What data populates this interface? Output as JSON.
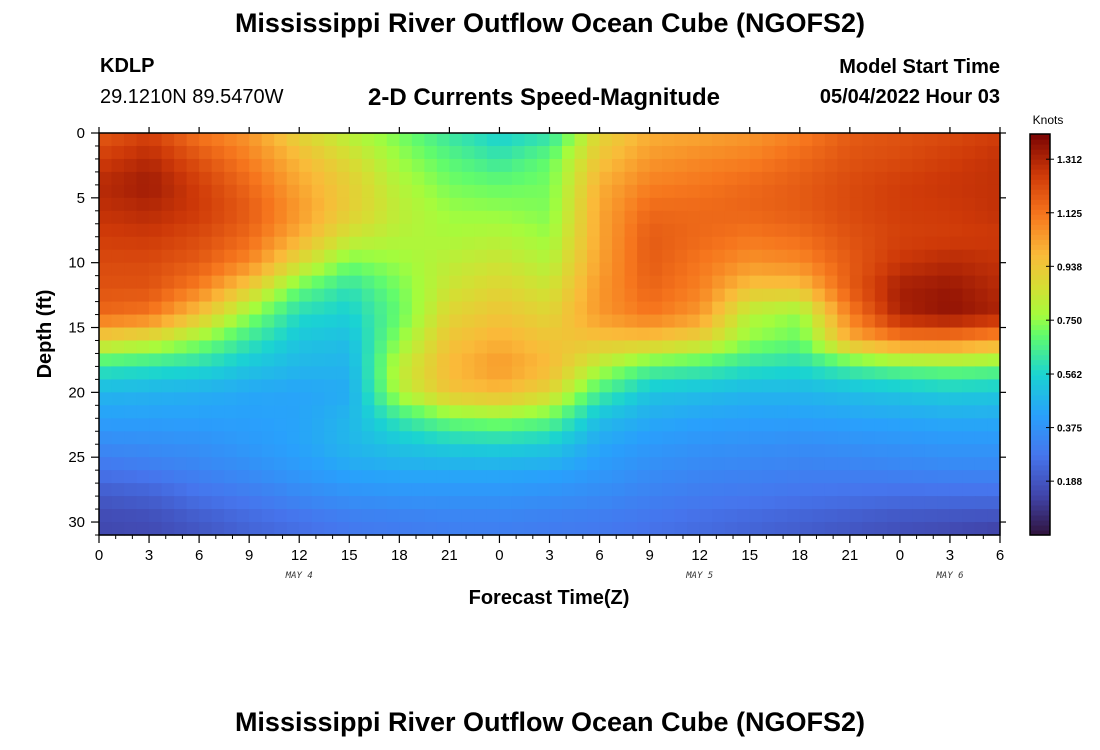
{
  "header": {
    "title": "Mississippi River Outflow Ocean Cube (NGOFS2)",
    "station": "KDLP",
    "coordinates": "29.1210N  89.5470W",
    "subtitle": "2-D Currents Speed-Magnitude",
    "start_label": "Model Start Time",
    "start_value": "05/04/2022 Hour 03"
  },
  "footer": {
    "title": "Mississippi River Outflow Ocean Cube (NGOFS2)"
  },
  "chart_data": {
    "type": "heatmap",
    "title": "2-D Currents Speed-Magnitude",
    "xlabel": "Forecast Time(Z)",
    "ylabel": "Depth (ft)",
    "x_range_hours": [
      0,
      54
    ],
    "y_range_ft": [
      0,
      31
    ],
    "x_tick_labels": [
      "0",
      "3",
      "6",
      "9",
      "12",
      "15",
      "18",
      "21",
      "0",
      "3",
      "6",
      "9",
      "12",
      "15",
      "18",
      "21",
      "0",
      "3",
      "6"
    ],
    "y_ticks": [
      0,
      5,
      10,
      15,
      20,
      25,
      30
    ],
    "day_labels": [
      {
        "label": "MAY 4",
        "hour": 12
      },
      {
        "label": "MAY 5",
        "hour": 36
      },
      {
        "label": "MAY 6",
        "hour": 51
      }
    ],
    "colorbar": {
      "unit": "Knots",
      "min": 0.0,
      "max": 1.4,
      "ticks": [
        0.188,
        0.375,
        0.562,
        0.75,
        0.938,
        1.125,
        1.312
      ],
      "tick_labels": [
        "0.188",
        "0.375",
        "0.562",
        "0.750",
        "0.938",
        "1.125",
        "1.312"
      ]
    },
    "grid_columns_hours": [
      0,
      3,
      6,
      9,
      12,
      15,
      18,
      21,
      24,
      27,
      30,
      33,
      36,
      39,
      42,
      45,
      48,
      51,
      54
    ],
    "grid_rows_depth_ft": [
      0,
      2,
      4,
      6,
      8,
      10,
      12,
      14,
      16,
      18,
      20,
      22,
      24,
      26,
      28,
      30,
      31
    ],
    "speed_grid_knots": [
      [
        1.18,
        1.24,
        1.12,
        1.05,
        0.9,
        0.8,
        0.72,
        0.62,
        0.55,
        0.6,
        0.9,
        1.0,
        1.02,
        1.05,
        1.1,
        1.18,
        1.2,
        1.22,
        1.25
      ],
      [
        1.25,
        1.3,
        1.2,
        1.1,
        0.98,
        0.88,
        0.76,
        0.68,
        0.62,
        0.7,
        0.95,
        1.05,
        1.08,
        1.1,
        1.15,
        1.2,
        1.22,
        1.25,
        1.28
      ],
      [
        1.3,
        1.34,
        1.25,
        1.15,
        1.02,
        0.92,
        0.8,
        0.72,
        0.7,
        0.72,
        1.0,
        1.1,
        1.12,
        1.15,
        1.18,
        1.22,
        1.25,
        1.27,
        1.28
      ],
      [
        1.28,
        1.3,
        1.26,
        1.18,
        1.05,
        0.92,
        0.82,
        0.76,
        0.75,
        0.73,
        1.02,
        1.15,
        1.15,
        1.16,
        1.18,
        1.22,
        1.25,
        1.26,
        1.28
      ],
      [
        1.25,
        1.26,
        1.22,
        1.15,
        1.0,
        0.85,
        0.8,
        0.78,
        0.8,
        0.76,
        1.02,
        1.18,
        1.15,
        1.12,
        1.14,
        1.2,
        1.24,
        1.25,
        1.26
      ],
      [
        1.22,
        1.22,
        1.18,
        1.08,
        0.88,
        0.72,
        0.76,
        0.82,
        0.85,
        0.8,
        1.03,
        1.18,
        1.12,
        1.06,
        1.08,
        1.18,
        1.27,
        1.3,
        1.28
      ],
      [
        1.2,
        1.2,
        1.1,
        0.92,
        0.7,
        0.6,
        0.72,
        0.85,
        0.9,
        0.85,
        1.05,
        1.16,
        1.1,
        0.95,
        0.95,
        1.18,
        1.33,
        1.35,
        1.3
      ],
      [
        1.15,
        1.12,
        0.95,
        0.75,
        0.58,
        0.55,
        0.7,
        0.9,
        0.95,
        0.9,
        1.05,
        1.12,
        1.05,
        0.8,
        0.75,
        1.1,
        1.32,
        1.36,
        1.32
      ],
      [
        0.9,
        0.85,
        0.75,
        0.62,
        0.52,
        0.5,
        0.75,
        0.95,
        1.0,
        0.95,
        0.95,
        0.95,
        0.9,
        0.75,
        0.7,
        1.0,
        1.1,
        1.1,
        1.05
      ],
      [
        0.62,
        0.6,
        0.58,
        0.52,
        0.48,
        0.47,
        0.82,
        0.98,
        1.05,
        0.98,
        0.8,
        0.68,
        0.65,
        0.6,
        0.58,
        0.65,
        0.7,
        0.72,
        0.7
      ],
      [
        0.48,
        0.47,
        0.46,
        0.44,
        0.43,
        0.45,
        0.8,
        0.95,
        0.98,
        0.9,
        0.65,
        0.52,
        0.5,
        0.48,
        0.48,
        0.5,
        0.52,
        0.54,
        0.53
      ],
      [
        0.42,
        0.42,
        0.42,
        0.42,
        0.43,
        0.48,
        0.62,
        0.72,
        0.75,
        0.7,
        0.5,
        0.45,
        0.43,
        0.42,
        0.42,
        0.43,
        0.44,
        0.45,
        0.45
      ],
      [
        0.35,
        0.36,
        0.37,
        0.4,
        0.43,
        0.48,
        0.52,
        0.55,
        0.56,
        0.54,
        0.44,
        0.4,
        0.38,
        0.37,
        0.36,
        0.37,
        0.38,
        0.39,
        0.39
      ],
      [
        0.28,
        0.3,
        0.33,
        0.36,
        0.4,
        0.44,
        0.45,
        0.45,
        0.45,
        0.44,
        0.4,
        0.36,
        0.34,
        0.33,
        0.32,
        0.32,
        0.33,
        0.34,
        0.34
      ],
      [
        0.2,
        0.22,
        0.27,
        0.3,
        0.34,
        0.37,
        0.38,
        0.38,
        0.38,
        0.37,
        0.35,
        0.32,
        0.3,
        0.29,
        0.28,
        0.27,
        0.26,
        0.26,
        0.26
      ],
      [
        0.15,
        0.16,
        0.2,
        0.24,
        0.27,
        0.3,
        0.31,
        0.32,
        0.32,
        0.31,
        0.3,
        0.28,
        0.26,
        0.24,
        0.22,
        0.2,
        0.18,
        0.17,
        0.16
      ],
      [
        0.15,
        0.16,
        0.19,
        0.23,
        0.26,
        0.29,
        0.3,
        0.31,
        0.31,
        0.3,
        0.29,
        0.27,
        0.25,
        0.23,
        0.21,
        0.19,
        0.17,
        0.15,
        0.12
      ]
    ]
  }
}
